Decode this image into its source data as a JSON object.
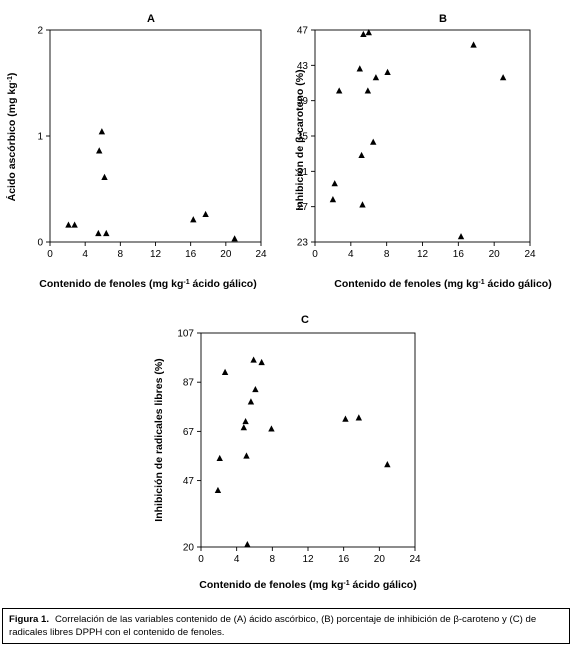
{
  "chart_data": [
    {
      "type": "scatter",
      "panel_label": "A",
      "xlabel_main": "Contenido de fenoles (mg kg",
      "xlabel_sup": "-1",
      "xlabel_tail": " ácido gálico)",
      "ylabel_main": "Ácido ascórbico (mg kg",
      "ylabel_sup": "-1",
      "ylabel_tail": ")",
      "xlim": [
        0,
        24
      ],
      "ylim": [
        0,
        2
      ],
      "xticks": [
        0,
        4,
        8,
        12,
        16,
        20,
        24
      ],
      "yticks": [
        0,
        1,
        2
      ],
      "x": [
        2.1,
        2.8,
        5.5,
        5.6,
        5.9,
        6.2,
        6.4,
        16.3,
        17.7,
        21.0
      ],
      "y": [
        0.16,
        0.16,
        0.08,
        0.86,
        1.04,
        0.61,
        0.08,
        0.21,
        0.26,
        0.03
      ]
    },
    {
      "type": "scatter",
      "panel_label": "B",
      "xlabel_main": "Contenido de fenoles (mg kg",
      "xlabel_sup": "-1",
      "xlabel_tail": " ácido gálico)",
      "ylabel_main": "Inhibición de β-caroteno (%)",
      "ylabel_sup": "",
      "ylabel_tail": "",
      "xlim": [
        0,
        24
      ],
      "ylim": [
        23,
        47
      ],
      "xticks": [
        0,
        4,
        8,
        12,
        16,
        20,
        24
      ],
      "yticks": [
        23,
        27,
        31,
        35,
        39,
        43,
        47
      ],
      "x": [
        2.0,
        2.2,
        2.7,
        5.0,
        5.2,
        5.3,
        5.4,
        5.9,
        6.0,
        6.5,
        6.8,
        8.1,
        16.3,
        17.7,
        21.0
      ],
      "y": [
        27.8,
        29.6,
        40.1,
        42.6,
        32.8,
        27.2,
        46.5,
        40.1,
        46.7,
        34.3,
        41.6,
        42.2,
        23.6,
        45.3,
        41.6
      ]
    },
    {
      "type": "scatter",
      "panel_label": "C",
      "xlabel_main": "Contenido de fenoles (mg kg",
      "xlabel_sup": "-1",
      "xlabel_tail": " ácido gálico)",
      "ylabel_main": "Inhibición de radicales libres (%)",
      "ylabel_sup": "",
      "ylabel_tail": "",
      "xlim": [
        0,
        24
      ],
      "ylim": [
        20,
        107
      ],
      "xticks": [
        0,
        4,
        8,
        12,
        16,
        20,
        24
      ],
      "yticks": [
        20,
        47,
        67,
        87,
        107
      ],
      "x": [
        1.9,
        2.1,
        2.7,
        4.8,
        5.0,
        5.1,
        5.2,
        5.6,
        5.9,
        6.1,
        6.8,
        7.9,
        16.2,
        17.7,
        20.9
      ],
      "y": [
        43.0,
        56.0,
        91.0,
        68.5,
        71.0,
        57.0,
        21.0,
        79.0,
        96.0,
        84.0,
        95.0,
        68.0,
        72.0,
        72.5,
        53.5
      ]
    }
  ],
  "caption": {
    "label": "Figura 1.",
    "text": "Correlación de las variables contenido de (A) ácido ascórbico, (B) porcentaje de inhibición de β-caroteno y (C) de radicales libres DPPH con el contenido de fenoles."
  }
}
